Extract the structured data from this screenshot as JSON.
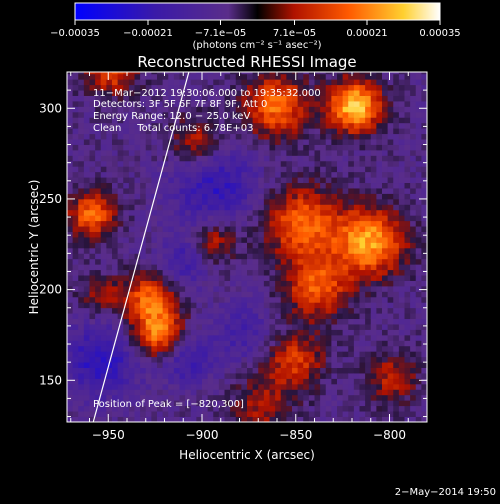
{
  "chart_data": {
    "type": "heatmap",
    "title": "Reconstructed RHESSI Image",
    "xlabel": "Heliocentric X (arcsec)",
    "ylabel": "Heliocentric Y (arcsec)",
    "xlim": [
      -972,
      -780
    ],
    "ylim": [
      127,
      320
    ],
    "xticks": [
      -950,
      -900,
      -850,
      -800
    ],
    "xtick_labels": [
      "−950",
      "−900",
      "−850",
      "−800"
    ],
    "yticks": [
      150,
      200,
      250,
      300
    ],
    "ytick_labels": [
      "150",
      "200",
      "250",
      "300"
    ],
    "colorbar": {
      "range": [
        -0.00035,
        0.00035
      ],
      "ticks": [
        -0.00035,
        -0.00021,
        -7.1e-05,
        7.1e-05,
        0.00021,
        0.00035
      ],
      "tick_labels": [
        "−0.00035",
        "−0.00021",
        "−7.1e−05",
        "7.1e−05",
        "0.00021",
        "0.00035"
      ],
      "unit_label": "(photons cm⁻² s⁻¹ asec⁻²)",
      "colors": [
        "#0000ff",
        "#3a1aa8",
        "#5a2d8a",
        "#000000",
        "#b01200",
        "#ff5a00",
        "#ffd030",
        "#ffffff"
      ]
    },
    "annotations": [
      "11−Mar−2012 19:30:06.000 to 19:35:32.000",
      "Detectors: 3F 5F 6F 7F 8F 9F, Att 0",
      "Energy Range: 12.0 − 25.0 keV",
      "Clean     Total counts: 6.78E+03"
    ],
    "peak_label": "Position of Peak = [−820,300]",
    "peak": [
      -820,
      300
    ],
    "limb": {
      "type": "line",
      "points": [
        [
          -958,
          127
        ],
        [
          -907,
          320
        ]
      ]
    },
    "grid": false,
    "bright_sources": [
      {
        "x": -925,
        "y": 175,
        "sigma": 10,
        "value": 0.00028
      },
      {
        "x": -930,
        "y": 195,
        "sigma": 9,
        "value": 0.00022
      },
      {
        "x": -848,
        "y": 235,
        "sigma": 14,
        "value": 0.00024
      },
      {
        "x": -840,
        "y": 200,
        "sigma": 12,
        "value": 0.00022
      },
      {
        "x": -852,
        "y": 160,
        "sigma": 11,
        "value": 0.00018
      },
      {
        "x": -812,
        "y": 225,
        "sigma": 13,
        "value": 0.0003
      },
      {
        "x": -820,
        "y": 300,
        "sigma": 10,
        "value": 0.00035
      },
      {
        "x": -862,
        "y": 300,
        "sigma": 12,
        "value": 0.00025
      },
      {
        "x": -905,
        "y": 280,
        "sigma": 10,
        "value": 0.00015
      },
      {
        "x": -960,
        "y": 240,
        "sigma": 9,
        "value": 0.00024
      },
      {
        "x": -950,
        "y": 320,
        "sigma": 10,
        "value": 0.0002
      },
      {
        "x": -895,
        "y": 225,
        "sigma": 9,
        "value": 0.00016
      },
      {
        "x": -870,
        "y": 135,
        "sigma": 12,
        "value": 0.00012
      },
      {
        "x": -800,
        "y": 150,
        "sigma": 10,
        "value": 0.00014
      },
      {
        "x": -955,
        "y": 195,
        "sigma": 8,
        "value": 0.00012
      }
    ],
    "dark_regions": [
      {
        "x": -955,
        "y": 160,
        "sigma": 14,
        "value": -0.00018
      },
      {
        "x": -910,
        "y": 160,
        "sigma": 10,
        "value": -0.00014
      },
      {
        "x": -895,
        "y": 255,
        "sigma": 16,
        "value": -0.00016
      },
      {
        "x": -910,
        "y": 215,
        "sigma": 10,
        "value": -0.00012
      },
      {
        "x": -880,
        "y": 175,
        "sigma": 12,
        "value": -0.0001
      }
    ]
  },
  "footer_date": "2−May−2014 19:50"
}
